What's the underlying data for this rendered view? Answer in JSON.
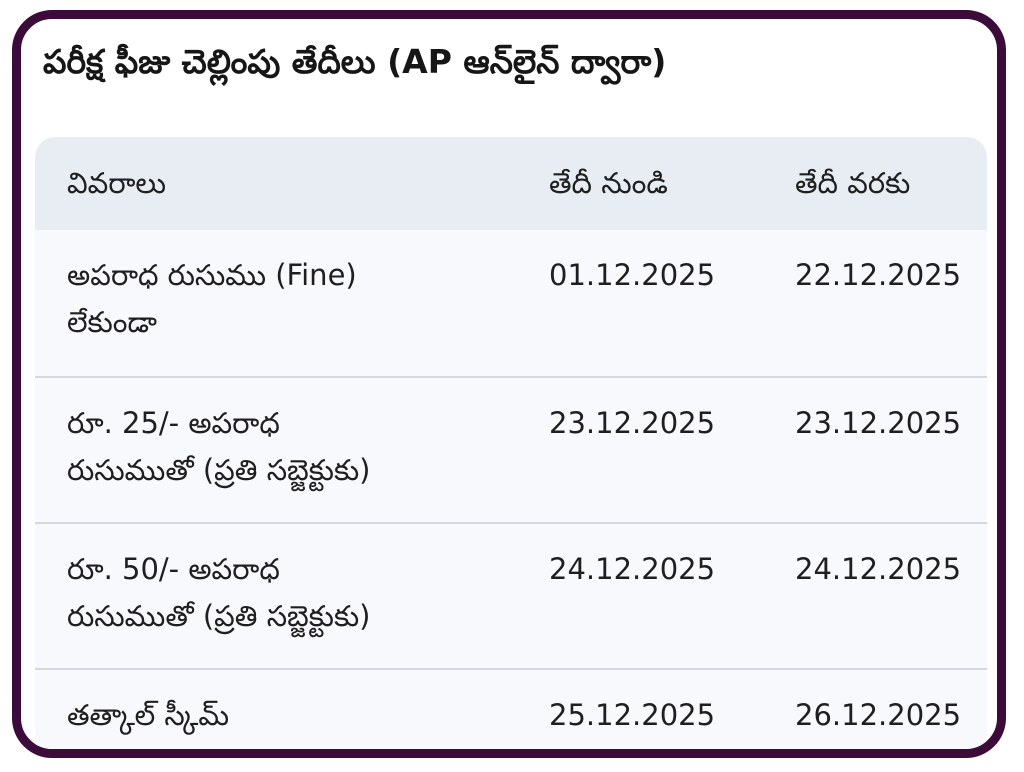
{
  "title": "పరీక్ష ఫీజు చెల్లింపు తేదీలు (AP ఆన్‌లైన్ ద్వారా)",
  "table": {
    "headers": [
      "వివరాలు",
      "తేదీ నుండి",
      "తేదీ వరకు"
    ],
    "rows": [
      {
        "detail_line1": "అపరాధ రుసుము (Fine)",
        "detail_line2": "లేకుండా",
        "from": "01.12.2025",
        "to": "22.12.2025"
      },
      {
        "detail_line1": "రూ. 25/- అపరాధ",
        "detail_line2": "రుసుముతో (ప్రతి సబ్జెక్టుకు)",
        "from": "23.12.2025",
        "to": "23.12.2025"
      },
      {
        "detail_line1": "రూ. 50/- అపరాధ",
        "detail_line2": "రుసుముతో (ప్రతి సబ్జెక్టుకు)",
        "from": "24.12.2025",
        "to": "24.12.2025"
      },
      {
        "detail_line1": "తత్కాల్ స్కీమ్",
        "detail_line2": "",
        "from": "25.12.2025",
        "to": "26.12.2025"
      }
    ]
  },
  "colors": {
    "frame": "#3b0c3a",
    "header_bg": "#e8edf4",
    "row_bg": "#f8f9fc",
    "divider": "#d5d8de"
  }
}
